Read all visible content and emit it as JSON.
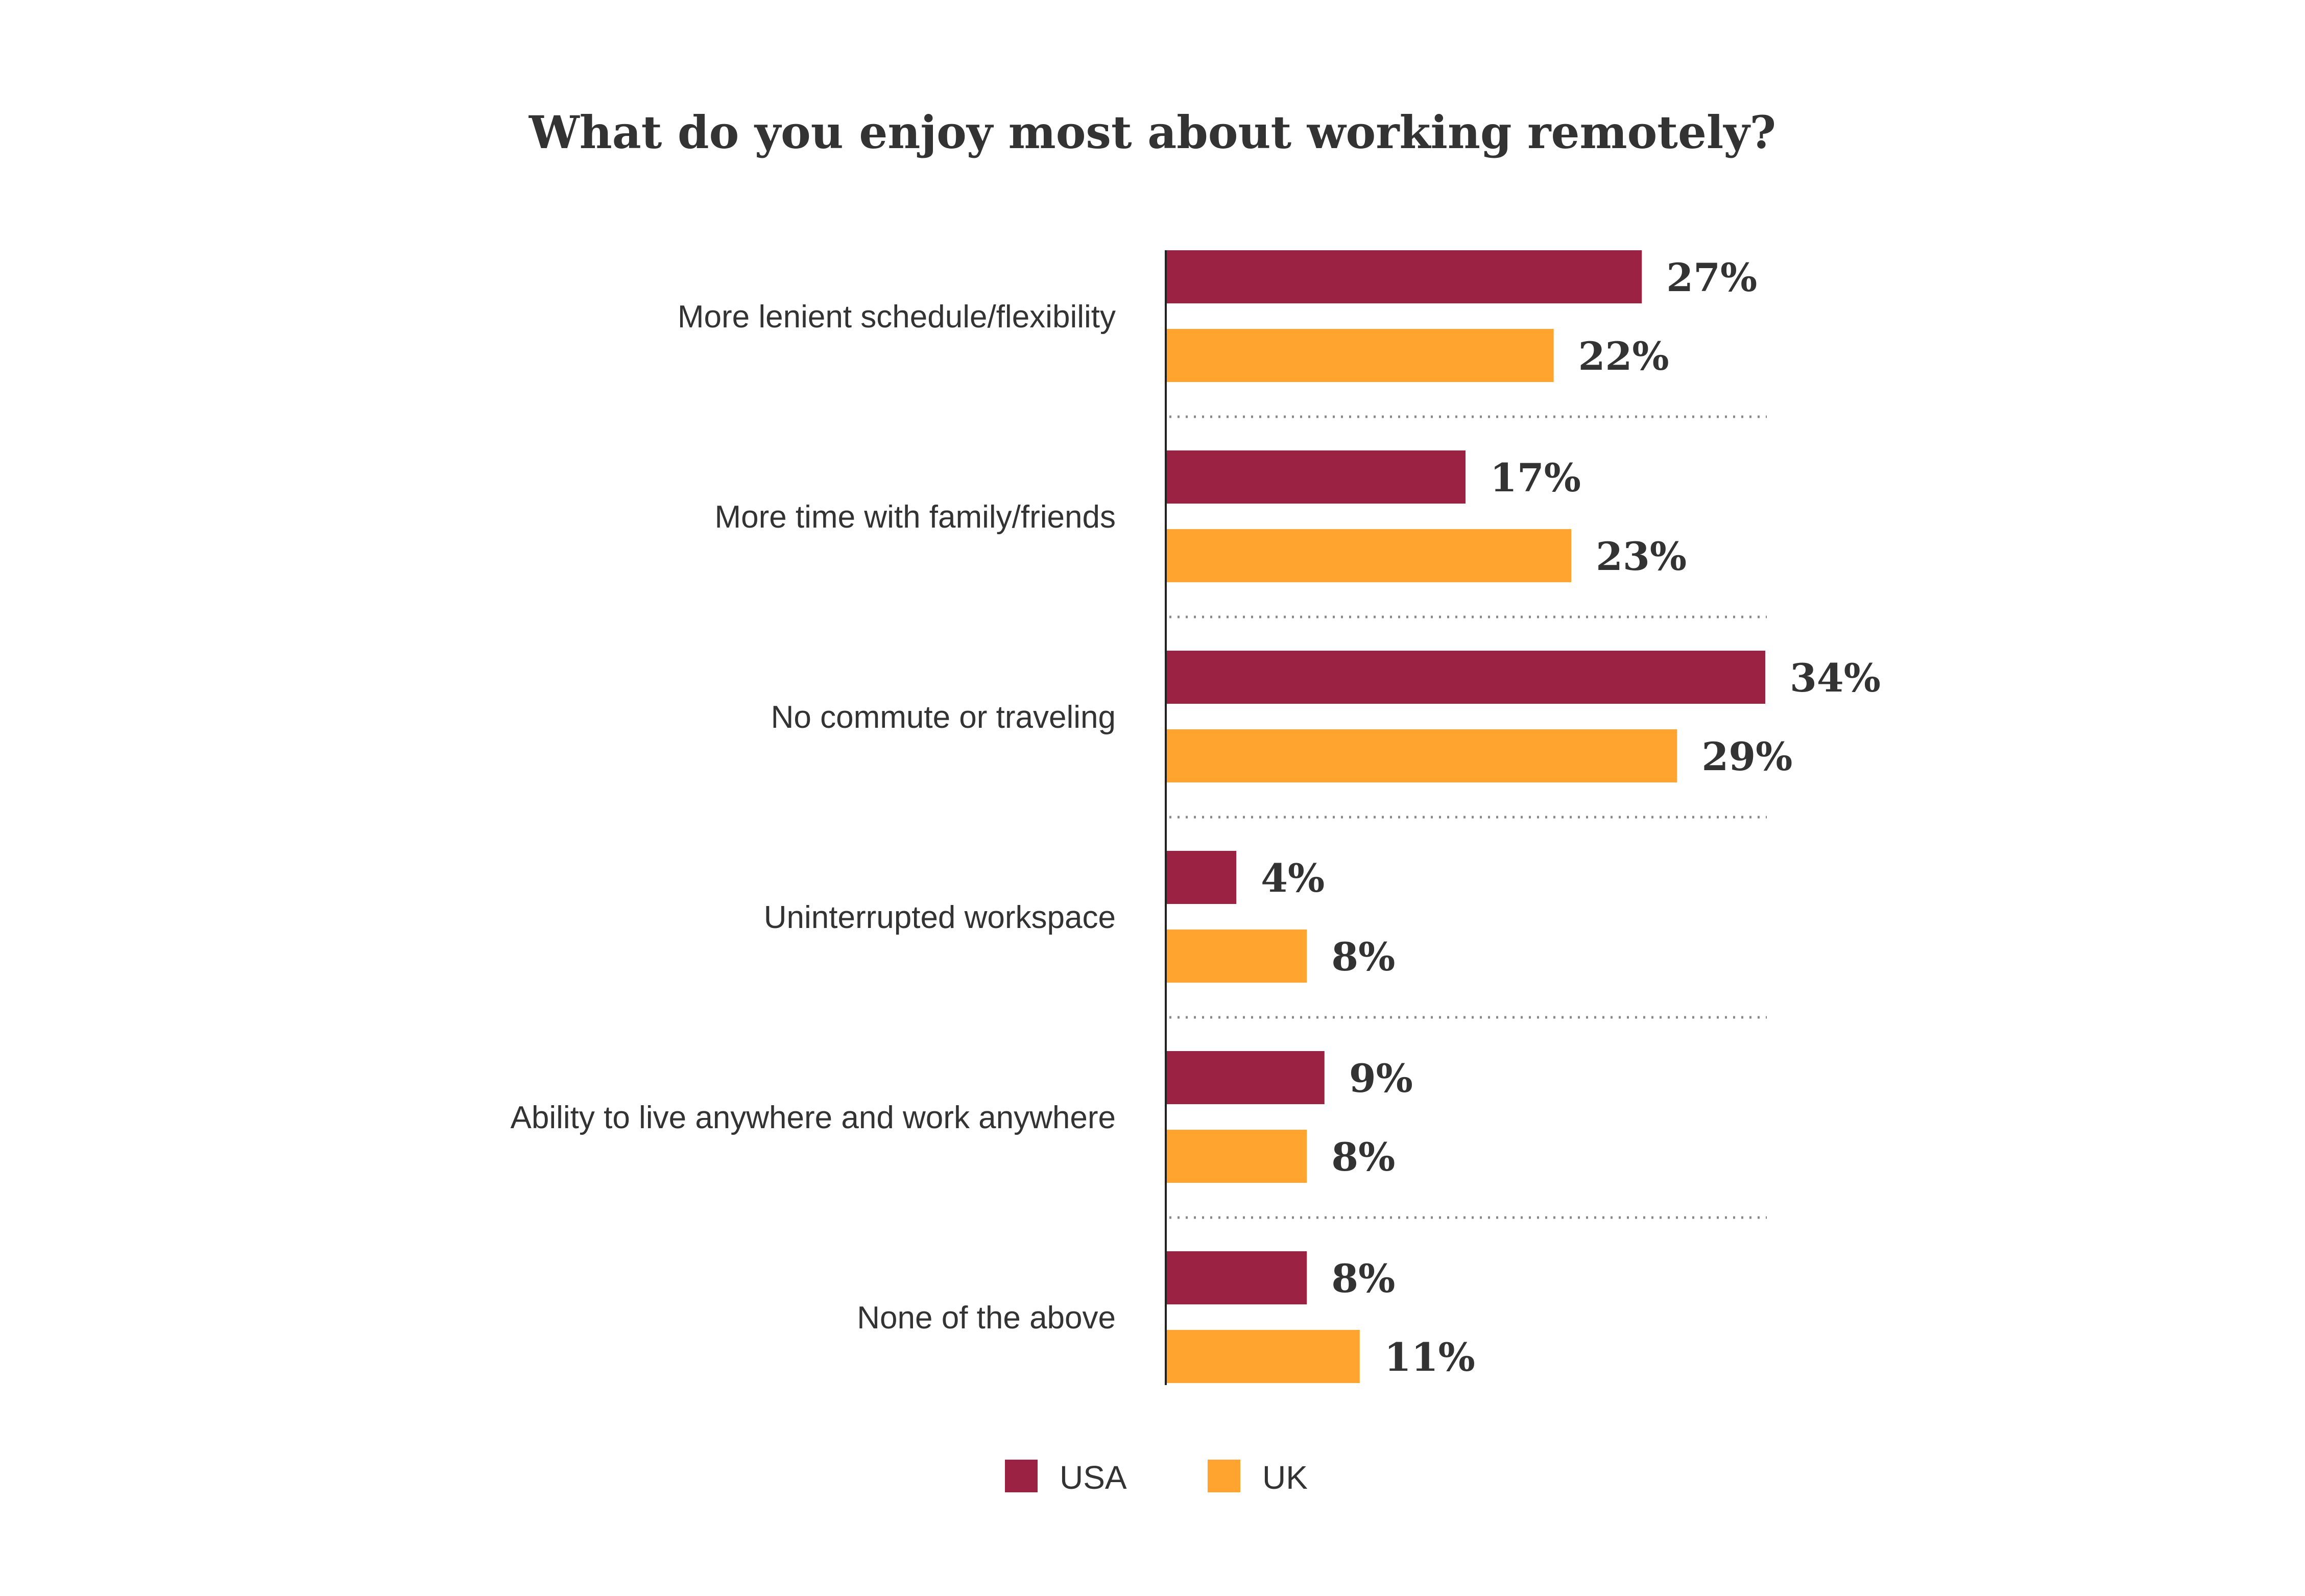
{
  "chart_data": {
    "type": "bar",
    "orientation": "horizontal",
    "title": "What do you enjoy most about working remotely?",
    "categories": [
      "More lenient schedule/flexibility",
      "More time with family/friends",
      "No commute or traveling",
      "Uninterrupted workspace",
      "Ability to live anywhere and work anywhere",
      "None of the above"
    ],
    "series": [
      {
        "name": "USA",
        "color": "#9B2242",
        "values": [
          27,
          17,
          34,
          4,
          9,
          8
        ],
        "labels": [
          "27%",
          "17%",
          "34%",
          "4%",
          "9%",
          "8%"
        ]
      },
      {
        "name": "UK",
        "color": "#FFA52F",
        "values": [
          22,
          23,
          29,
          8,
          8,
          11
        ],
        "labels": [
          "22%",
          "23%",
          "29%",
          "8%",
          "8%",
          "11%"
        ]
      }
    ],
    "xlim": [
      0,
      34
    ],
    "grid": false,
    "legend_position": "bottom-center"
  }
}
